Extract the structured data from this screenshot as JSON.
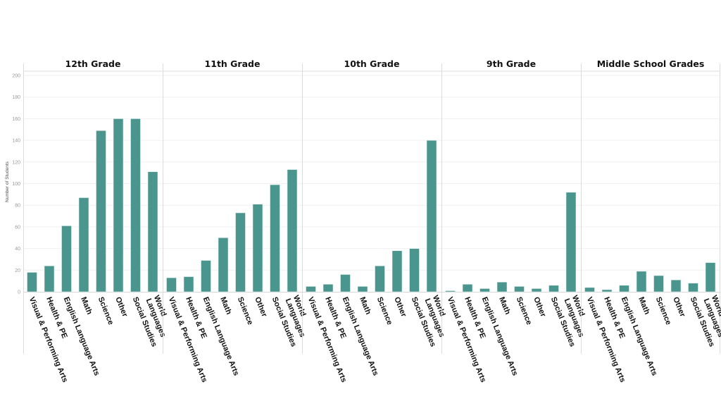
{
  "chart_data": {
    "type": "bar",
    "ylabel": "Number of Students",
    "ylim": [
      0,
      200
    ],
    "yticks": [
      0,
      20,
      40,
      60,
      80,
      100,
      120,
      140,
      160,
      180,
      200
    ],
    "grid": true,
    "bar_color": "#4a968e",
    "categories": [
      "Visual & Performing Arts",
      "Health & PE",
      "English Language Arts",
      "Math",
      "Science",
      "Other",
      "Social Studies",
      "World Languages"
    ],
    "category_lines": [
      [
        "Visual & Performing Arts"
      ],
      [
        "Health & PE"
      ],
      [
        "English Language Arts"
      ],
      [
        "Math"
      ],
      [
        "Science"
      ],
      [
        "Other"
      ],
      [
        "Social Studies"
      ],
      [
        "World",
        "Languages"
      ]
    ],
    "panels": [
      {
        "title": "12th Grade",
        "values": [
          18,
          24,
          61,
          87,
          149,
          160,
          160,
          111
        ]
      },
      {
        "title": "11th Grade",
        "values": [
          13,
          14,
          29,
          50,
          73,
          81,
          99,
          113
        ]
      },
      {
        "title": "10th Grade",
        "values": [
          5,
          7,
          16,
          5,
          24,
          38,
          40,
          140
        ]
      },
      {
        "title": "9th Grade",
        "values": [
          1,
          7,
          3,
          9,
          5,
          3,
          6,
          92
        ]
      },
      {
        "title": "Middle School Grades",
        "values": [
          4,
          2,
          6,
          19,
          15,
          11,
          8,
          27
        ]
      }
    ]
  }
}
